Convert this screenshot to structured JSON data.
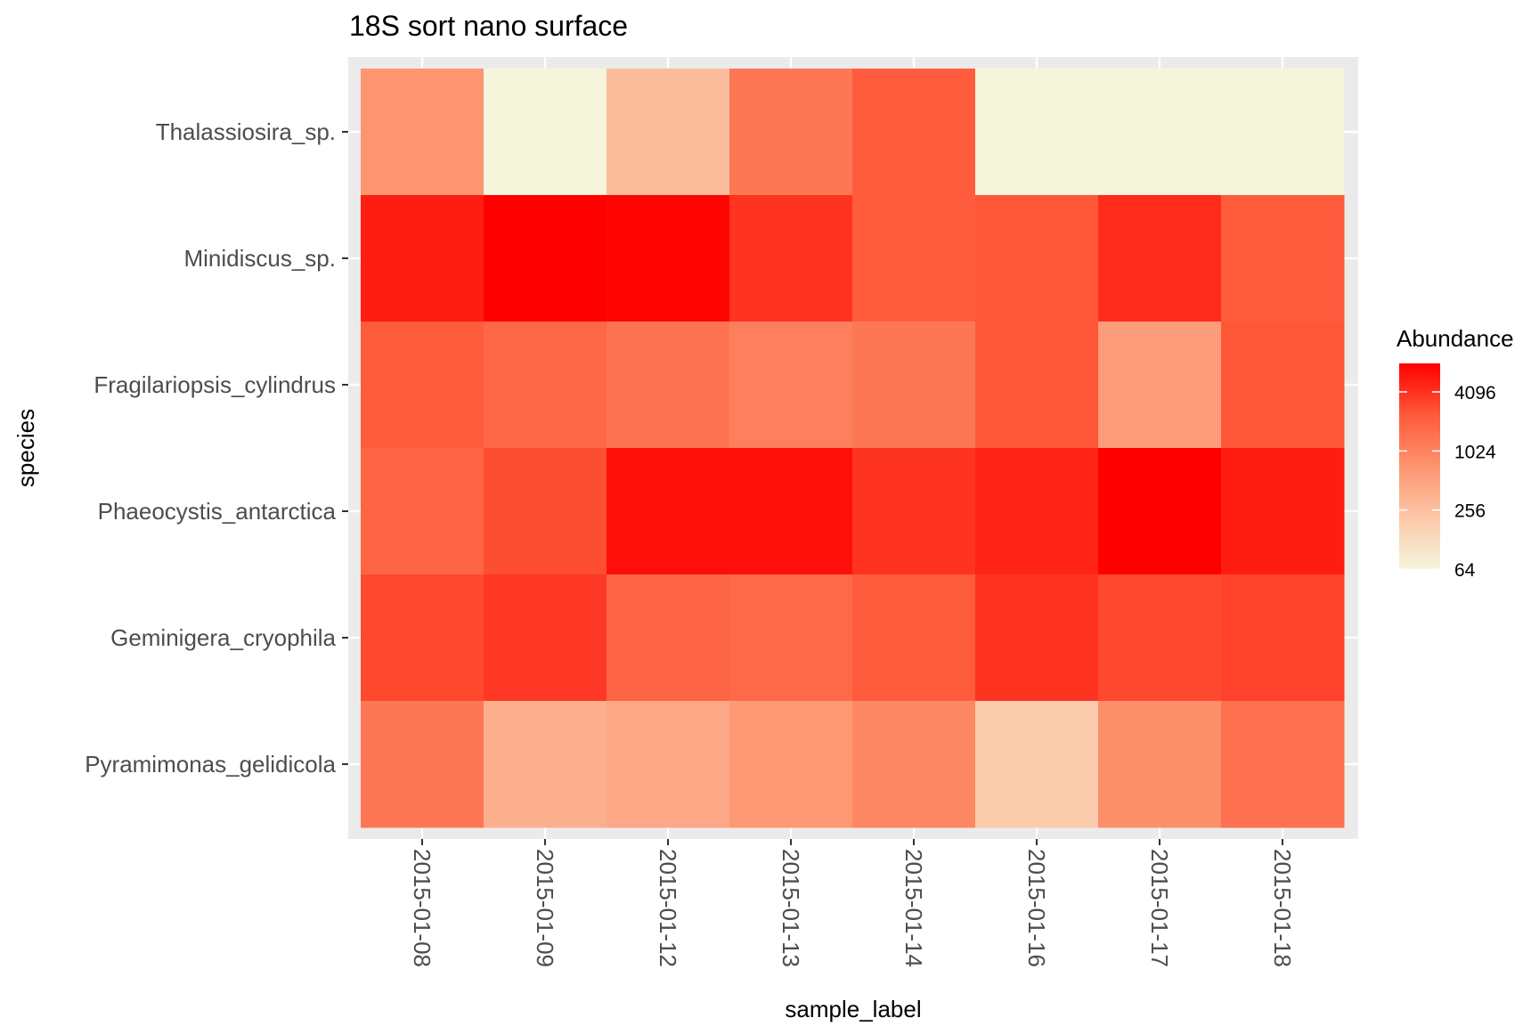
{
  "chart_data": {
    "type": "heatmap",
    "title": "18S sort nano surface",
    "xlabel": "sample_label",
    "ylabel": "species",
    "x_categories": [
      "2015-01-08",
      "2015-01-09",
      "2015-01-12",
      "2015-01-13",
      "2015-01-14",
      "2015-01-16",
      "2015-01-17",
      "2015-01-18"
    ],
    "y_categories": [
      "Thalassiosira_sp.",
      "Minidiscus_sp.",
      "Fragilariopsis_cylindrus",
      "Phaeocystis_antarctica",
      "Geminigera_cryophila",
      "Pyramimonas_gelidicola"
    ],
    "values": [
      [
        700,
        64,
        280,
        1300,
        2300,
        64,
        64,
        64
      ],
      [
        5500,
        8000,
        7500,
        4000,
        2300,
        2500,
        4500,
        2300
      ],
      [
        2300,
        1800,
        1400,
        1100,
        1300,
        2500,
        600,
        2500
      ],
      [
        1900,
        2800,
        6500,
        6500,
        4000,
        5000,
        8000,
        5500
      ],
      [
        3000,
        3800,
        1900,
        1700,
        2300,
        4000,
        3000,
        3300
      ],
      [
        1300,
        380,
        450,
        650,
        950,
        190,
        800,
        1500
      ]
    ],
    "colorbar": {
      "title": "Abundance",
      "scale": "log2",
      "low_color": "#f5f5dc",
      "high_color": "#ff0000",
      "range": [
        64,
        8000
      ],
      "ticks": [
        "64",
        "256",
        "1024",
        "4096"
      ]
    },
    "colors": {
      "panel_background": "#ebebeb",
      "grid": "#ffffff"
    }
  }
}
